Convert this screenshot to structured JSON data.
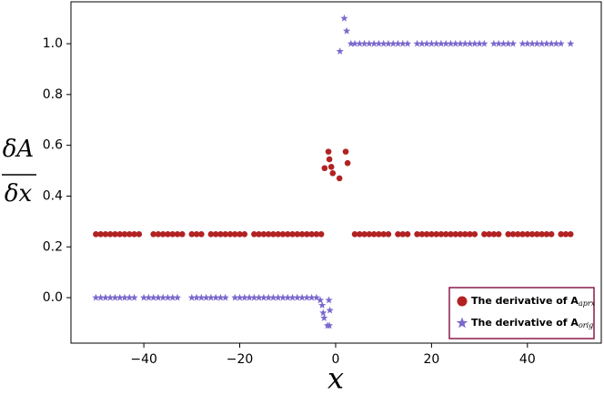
{
  "chart_data": {
    "type": "scatter",
    "xlabel": "x",
    "ylabel_numerator": "δA",
    "ylabel_denominator": "δx",
    "xlim": [
      -55.2,
      55.4
    ],
    "ylim": [
      -0.179,
      1.165
    ],
    "xticks": [
      {
        "value": -40,
        "label": "−40"
      },
      {
        "value": -20,
        "label": "−20"
      },
      0,
      20,
      40
    ],
    "yticks": [
      {
        "value": 0,
        "label": "0.0"
      },
      {
        "value": 0.2,
        "label": "0.2"
      },
      {
        "value": 0.4,
        "label": "0.4"
      },
      {
        "value": 0.6,
        "label": "0.6"
      },
      {
        "value": 0.8,
        "label": "0.8"
      },
      {
        "value": 1,
        "label": "1.0"
      }
    ],
    "legend": "lower right",
    "series": [
      {
        "name": "The derivative of A",
        "subscript": "aprx",
        "color": "#b22222",
        "marker": "circle",
        "x": [
          -50,
          -49,
          -48,
          -47,
          -46,
          -45,
          -44,
          -43,
          -42,
          -41,
          -38,
          -37,
          -36,
          -35,
          -34,
          -33,
          -32,
          -30,
          -29,
          -28,
          -26,
          -25,
          -24,
          -23,
          -22,
          -21,
          -20,
          -19,
          -17,
          -16,
          -15,
          -14,
          -13,
          -12,
          -11,
          -10,
          -9,
          -8,
          -7,
          -6,
          -5,
          -4,
          -3,
          -2.3,
          -1.3,
          -1.5,
          -0.9,
          -0.6,
          0.8,
          2.1,
          2.5,
          4,
          5,
          6,
          7,
          8,
          9,
          10,
          11,
          13,
          14,
          15,
          17,
          18,
          19,
          20,
          21,
          22,
          23,
          24,
          25,
          26,
          27,
          28,
          29,
          31,
          32,
          33,
          34,
          36,
          37,
          38,
          39,
          40,
          41,
          42,
          43,
          44,
          45,
          47,
          48,
          49
        ],
        "values": [
          0.25,
          0.25,
          0.25,
          0.25,
          0.25,
          0.25,
          0.25,
          0.25,
          0.25,
          0.25,
          0.25,
          0.25,
          0.25,
          0.25,
          0.25,
          0.25,
          0.25,
          0.25,
          0.25,
          0.25,
          0.25,
          0.25,
          0.25,
          0.25,
          0.25,
          0.25,
          0.25,
          0.25,
          0.25,
          0.25,
          0.25,
          0.25,
          0.25,
          0.25,
          0.25,
          0.25,
          0.25,
          0.25,
          0.25,
          0.25,
          0.25,
          0.25,
          0.25,
          0.51,
          0.545,
          0.575,
          0.515,
          0.49,
          0.47,
          0.575,
          0.53,
          0.25,
          0.25,
          0.25,
          0.25,
          0.25,
          0.25,
          0.25,
          0.25,
          0.25,
          0.25,
          0.25,
          0.25,
          0.25,
          0.25,
          0.25,
          0.25,
          0.25,
          0.25,
          0.25,
          0.25,
          0.25,
          0.25,
          0.25,
          0.25,
          0.25,
          0.25,
          0.25,
          0.25,
          0.25,
          0.25,
          0.25,
          0.25,
          0.25,
          0.25,
          0.25,
          0.25,
          0.25,
          0.25,
          0.25,
          0.25,
          0.25
        ]
      },
      {
        "name": "The derivative of A",
        "subscript": "orig",
        "color": "#7b68cc",
        "marker": "star",
        "x": [
          -50,
          -49,
          -48,
          -47,
          -46,
          -45,
          -44,
          -43,
          -42,
          -40,
          -39,
          -38,
          -37,
          -36,
          -35,
          -34,
          -33,
          -30,
          -29,
          -28,
          -27,
          -26,
          -25,
          -24,
          -23,
          -21,
          -20,
          -19,
          -18,
          -17,
          -16,
          -15,
          -14,
          -13,
          -12,
          -11,
          -10,
          -9,
          -8,
          -7,
          -6,
          -5,
          -4,
          -3.2,
          -2.8,
          -2.6,
          -2.4,
          -1.7,
          -1.3,
          -1.2,
          -1.4,
          0.9,
          1.8,
          2.3,
          3.2,
          4,
          5,
          6,
          7,
          8,
          9,
          10,
          11,
          12,
          13,
          14,
          15,
          17,
          18,
          19,
          20,
          21,
          22,
          23,
          24,
          25,
          26,
          27,
          28,
          29,
          30,
          31,
          33,
          34,
          35,
          36,
          37,
          39,
          40,
          41,
          42,
          43,
          44,
          45,
          46,
          47,
          49
        ],
        "values": [
          0,
          0,
          0,
          0,
          0,
          0,
          0,
          0,
          0,
          0,
          0,
          0,
          0,
          0,
          0,
          0,
          0,
          0,
          0,
          0,
          0,
          0,
          0,
          0,
          0,
          0,
          0,
          0,
          0,
          0,
          0,
          0,
          0,
          0,
          0,
          0,
          0,
          0,
          0,
          0,
          0,
          0,
          0,
          -0.01,
          -0.03,
          -0.06,
          -0.08,
          -0.11,
          -0.11,
          -0.05,
          -0.01,
          0.97,
          1.1,
          1.05,
          1.0,
          1,
          1,
          1,
          1,
          1,
          1,
          1,
          1,
          1,
          1,
          1,
          1,
          1,
          1,
          1,
          1,
          1,
          1,
          1,
          1,
          1,
          1,
          1,
          1,
          1,
          1,
          1,
          1,
          1,
          1,
          1,
          1,
          1,
          1,
          1,
          1,
          1,
          1,
          1,
          1,
          1,
          1
        ]
      }
    ]
  }
}
